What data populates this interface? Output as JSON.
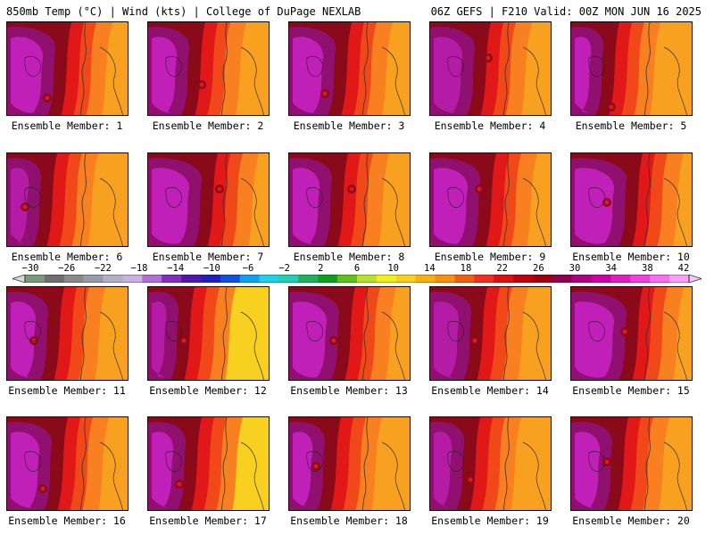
{
  "header": {
    "left": "850mb Temp (°C) | Wind (kts) | College of DuPage NEXLAB",
    "right": "06Z GEFS | F210 Valid: 00Z MON JUN 16 2025"
  },
  "members": [
    "Ensemble Member: 1",
    "Ensemble Member: 2",
    "Ensemble Member: 3",
    "Ensemble Member: 4",
    "Ensemble Member: 5",
    "Ensemble Member: 6",
    "Ensemble Member: 7",
    "Ensemble Member: 8",
    "Ensemble Member: 9",
    "Ensemble Member: 10",
    "Ensemble Member: 11",
    "Ensemble Member: 12",
    "Ensemble Member: 13",
    "Ensemble Member: 14",
    "Ensemble Member: 15",
    "Ensemble Member: 16",
    "Ensemble Member: 17",
    "Ensemble Member: 18",
    "Ensemble Member: 19",
    "Ensemble Member: 20"
  ],
  "colorbar": {
    "tick_labels": [
      "−30",
      "−26",
      "−22",
      "−18",
      "−14",
      "−10",
      "−6",
      "−2",
      "2",
      "6",
      "10",
      "14",
      "18",
      "22",
      "26",
      "30",
      "34",
      "38",
      "42"
    ],
    "colors": [
      "#7a9a7a",
      "#6e6e6e",
      "#8a8a8a",
      "#9a9aaa",
      "#b0b0c8",
      "#c8b0e0",
      "#b070d8",
      "#8030c0",
      "#5018b0",
      "#2020c0",
      "#1050e0",
      "#10a0f0",
      "#20d0e8",
      "#20d0b0",
      "#20b060",
      "#10a020",
      "#60c020",
      "#b8e030",
      "#f0f020",
      "#f8d020",
      "#f8b010",
      "#f89010",
      "#f06010",
      "#f03020",
      "#e01010",
      "#c00010",
      "#a00010",
      "#900050",
      "#b00080",
      "#d000a0",
      "#e020c0",
      "#f040e0",
      "#f870f0",
      "#f8a0f8"
    ]
  },
  "color_keys": {
    "magenta": "#c020b8",
    "purple": "#901070",
    "maroon": "#8a0a1a",
    "red": "#e01818",
    "redorange": "#f04818",
    "orange": "#f88020",
    "lightorange": "#f8a020",
    "yellow": "#f8d020"
  }
}
